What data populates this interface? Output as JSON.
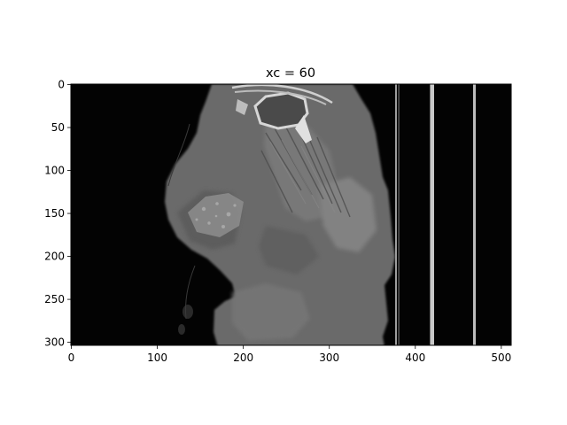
{
  "title": "xc = 60",
  "image": {
    "kind": "CT sagittal slice",
    "colormap": "gray"
  },
  "x_axis": {
    "range": [
      0,
      511
    ],
    "ticks": [
      {
        "value": 0,
        "label": "0"
      },
      {
        "value": 100,
        "label": "100"
      },
      {
        "value": 200,
        "label": "200"
      },
      {
        "value": 300,
        "label": "300"
      },
      {
        "value": 400,
        "label": "400"
      },
      {
        "value": 500,
        "label": "500"
      }
    ]
  },
  "y_axis": {
    "range": [
      0,
      303
    ],
    "inverted": true,
    "ticks": [
      {
        "value": 0,
        "label": "0"
      },
      {
        "value": 50,
        "label": "50"
      },
      {
        "value": 100,
        "label": "100"
      },
      {
        "value": 150,
        "label": "150"
      },
      {
        "value": 200,
        "label": "200"
      },
      {
        "value": 250,
        "label": "250"
      },
      {
        "value": 300,
        "label": "300"
      }
    ]
  },
  "colors": {
    "background": "#000000",
    "tissue": "#6f6f6f",
    "bone": "#d8d8d8",
    "table_lines": "#bfbfbf"
  }
}
